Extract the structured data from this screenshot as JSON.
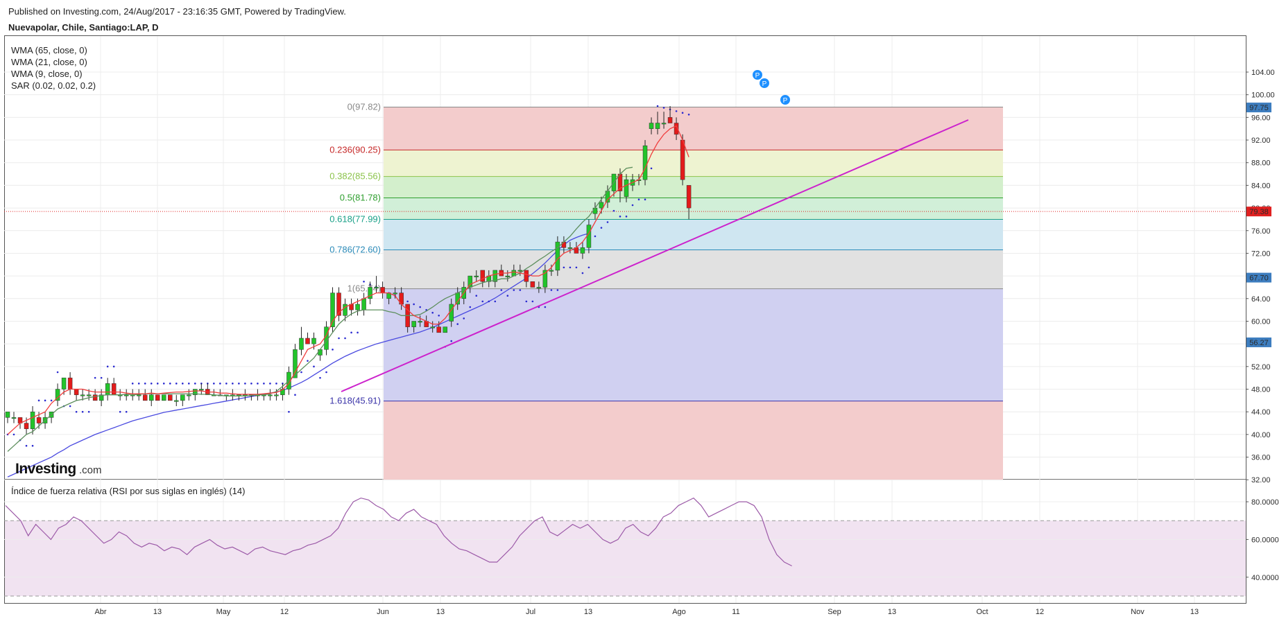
{
  "header": {
    "published": "Published on Investing.com, 24/Aug/2017 - 23:16:35 GMT, Powered by TradingView.",
    "symbol": "Nuevapolar, Chile, Santiago:LAP, D"
  },
  "logo": {
    "text": "Investing",
    "suffix": ".com"
  },
  "indicators": [
    "WMA (65, close, 0)",
    "WMA (21, close, 0)",
    "WMA (9, close, 0)",
    "SAR (0.02, 0.02, 0.2)"
  ],
  "price_axis": {
    "ticks": [
      "104.00",
      "100.00",
      "96.00",
      "92.00",
      "88.00",
      "84.00",
      "80.00",
      "76.00",
      "72.00",
      "68.00",
      "64.00",
      "60.00",
      "56.00",
      "52.00",
      "48.00",
      "44.00",
      "40.00",
      "36.00",
      "32.00"
    ]
  },
  "price_labels": [
    {
      "text": "97.75",
      "value": 97.75,
      "color": "#3d7dbf"
    },
    {
      "text": "79.38",
      "value": 79.38,
      "color": "#e02020"
    },
    {
      "text": "67.70",
      "value": 67.7,
      "color": "#3d7dbf"
    },
    {
      "text": "56.27",
      "value": 56.27,
      "color": "#3d7dbf"
    }
  ],
  "current_price": 79.38,
  "time_axis": {
    "ticks": [
      "Abr",
      "13",
      "May",
      "12",
      "Jun",
      "13",
      "Jul",
      "13",
      "Ago",
      "11",
      "Sep",
      "13",
      "Oct",
      "12",
      "Nov",
      "13"
    ]
  },
  "fibonacci": [
    {
      "text": "0(97.82)",
      "value": 97.82,
      "color": "#888888"
    },
    {
      "text": "0.236(90.25)",
      "value": 90.25,
      "color": "#c62828"
    },
    {
      "text": "0.382(85.56)",
      "value": 85.56,
      "color": "#8bc34a"
    },
    {
      "text": "0.5(81.78)",
      "value": 81.78,
      "color": "#2e9e2e"
    },
    {
      "text": "0.618(77.99)",
      "value": 77.99,
      "color": "#1aa088"
    },
    {
      "text": "0.786(72.60)",
      "value": 72.6,
      "color": "#2a8ab8"
    },
    {
      "text": "1(65.74)",
      "value": 65.74,
      "color": "#888888"
    },
    {
      "text": "1.618(45.91)",
      "value": 45.91,
      "color": "#3a33a8"
    }
  ],
  "rsi": {
    "title": "Índice de fuerza relativa (RSI por sus siglas en inglés) (14)",
    "ticks": [
      "80.0000",
      "60.0000",
      "40.0000"
    ],
    "upper": 70,
    "lower": 30
  },
  "markers": [
    "P",
    "P",
    "P"
  ],
  "colors": {
    "up": "#22c42a",
    "down": "#e31b1b",
    "wma9": "#f03c3c",
    "wma21": "#5d8f5d",
    "wma65": "#4a4ae0",
    "sar": "#2a2ad0",
    "trendline": "#cc22cc",
    "rsi": "#9c5aa8",
    "marker": "#1e90ff"
  },
  "chart_data": {
    "type": "candlestick",
    "title": "Nuevapolar, Chile, Santiago:LAP, D",
    "x_ticks": [
      "Abr",
      "13",
      "May",
      "12",
      "Jun",
      "13",
      "Jul",
      "13",
      "Ago",
      "11",
      "Sep",
      "13",
      "Oct",
      "12",
      "Nov",
      "13"
    ],
    "ylim": [
      29,
      106
    ],
    "candles": [
      {
        "o": 43,
        "h": 44,
        "l": 42,
        "c": 44
      },
      {
        "o": 43,
        "h": 44,
        "l": 42,
        "c": 43
      },
      {
        "o": 43,
        "h": 43,
        "l": 41,
        "c": 42
      },
      {
        "o": 42,
        "h": 43,
        "l": 40,
        "c": 41
      },
      {
        "o": 41,
        "h": 45,
        "l": 40,
        "c": 44
      },
      {
        "o": 43,
        "h": 44,
        "l": 41,
        "c": 42
      },
      {
        "o": 42,
        "h": 44,
        "l": 41,
        "c": 43
      },
      {
        "o": 43,
        "h": 44,
        "l": 42,
        "c": 44
      },
      {
        "o": 46,
        "h": 49,
        "l": 45,
        "c": 48
      },
      {
        "o": 48,
        "h": 50,
        "l": 47,
        "c": 50
      },
      {
        "o": 50,
        "h": 51,
        "l": 47,
        "c": 48
      },
      {
        "o": 48,
        "h": 48,
        "l": 46,
        "c": 47
      },
      {
        "o": 47,
        "h": 48,
        "l": 46,
        "c": 47
      },
      {
        "o": 47,
        "h": 48,
        "l": 46,
        "c": 47
      },
      {
        "o": 47,
        "h": 48,
        "l": 46,
        "c": 46
      },
      {
        "o": 46,
        "h": 48,
        "l": 45,
        "c": 47
      },
      {
        "o": 47,
        "h": 50,
        "l": 46,
        "c": 49
      },
      {
        "o": 49,
        "h": 50,
        "l": 47,
        "c": 47
      },
      {
        "o": 47,
        "h": 48,
        "l": 46,
        "c": 47
      },
      {
        "o": 47,
        "h": 48,
        "l": 46,
        "c": 47
      },
      {
        "o": 47,
        "h": 48,
        "l": 46,
        "c": 47
      },
      {
        "o": 47,
        "h": 48,
        "l": 46,
        "c": 47
      },
      {
        "o": 47,
        "h": 48,
        "l": 46,
        "c": 46
      },
      {
        "o": 46,
        "h": 48,
        "l": 45,
        "c": 47
      },
      {
        "o": 47,
        "h": 47,
        "l": 46,
        "c": 46
      },
      {
        "o": 46,
        "h": 47,
        "l": 46,
        "c": 47
      },
      {
        "o": 47,
        "h": 47,
        "l": 46,
        "c": 46
      },
      {
        "o": 46,
        "h": 47,
        "l": 45,
        "c": 46
      },
      {
        "o": 46,
        "h": 47,
        "l": 45,
        "c": 47
      },
      {
        "o": 47,
        "h": 48,
        "l": 46,
        "c": 47
      },
      {
        "o": 47,
        "h": 48,
        "l": 46,
        "c": 48
      },
      {
        "o": 48,
        "h": 49,
        "l": 47,
        "c": 48
      },
      {
        "o": 48,
        "h": 49,
        "l": 47,
        "c": 47
      },
      {
        "o": 47,
        "h": 48,
        "l": 47,
        "c": 47
      },
      {
        "o": 47,
        "h": 48,
        "l": 47,
        "c": 47
      },
      {
        "o": 47,
        "h": 47,
        "l": 46,
        "c": 47
      },
      {
        "o": 47,
        "h": 48,
        "l": 46,
        "c": 47
      },
      {
        "o": 47,
        "h": 47,
        "l": 46,
        "c": 47
      },
      {
        "o": 47,
        "h": 48,
        "l": 46,
        "c": 47
      },
      {
        "o": 47,
        "h": 47,
        "l": 46,
        "c": 47
      },
      {
        "o": 47,
        "h": 48,
        "l": 46,
        "c": 47
      },
      {
        "o": 47,
        "h": 47,
        "l": 46,
        "c": 47
      },
      {
        "o": 47,
        "h": 48,
        "l": 46,
        "c": 47
      },
      {
        "o": 47,
        "h": 48,
        "l": 46,
        "c": 47
      },
      {
        "o": 47,
        "h": 49,
        "l": 46,
        "c": 48
      },
      {
        "o": 48,
        "h": 52,
        "l": 47,
        "c": 51
      },
      {
        "o": 50,
        "h": 56,
        "l": 50,
        "c": 55
      },
      {
        "o": 55,
        "h": 59,
        "l": 54,
        "c": 57
      },
      {
        "o": 57,
        "h": 58,
        "l": 56,
        "c": 56
      },
      {
        "o": 56,
        "h": 58,
        "l": 55,
        "c": 57
      },
      {
        "o": 54,
        "h": 55,
        "l": 53,
        "c": 55
      },
      {
        "o": 55,
        "h": 60,
        "l": 54,
        "c": 59
      },
      {
        "o": 59,
        "h": 66,
        "l": 58,
        "c": 65
      },
      {
        "o": 65,
        "h": 66,
        "l": 60,
        "c": 61
      },
      {
        "o": 61,
        "h": 64,
        "l": 60,
        "c": 63
      },
      {
        "o": 63,
        "h": 64,
        "l": 61,
        "c": 62
      },
      {
        "o": 62,
        "h": 64,
        "l": 61,
        "c": 63
      },
      {
        "o": 62,
        "h": 65,
        "l": 61,
        "c": 64
      },
      {
        "o": 64,
        "h": 67,
        "l": 63,
        "c": 66
      },
      {
        "o": 66,
        "h": 68,
        "l": 65,
        "c": 66
      },
      {
        "o": 66,
        "h": 67,
        "l": 64,
        "c": 65
      },
      {
        "o": 64,
        "h": 65,
        "l": 63,
        "c": 65
      },
      {
        "o": 65,
        "h": 66,
        "l": 64,
        "c": 65
      },
      {
        "o": 65,
        "h": 66,
        "l": 62,
        "c": 63
      },
      {
        "o": 63,
        "h": 63,
        "l": 58,
        "c": 59
      },
      {
        "o": 59,
        "h": 60,
        "l": 58,
        "c": 60
      },
      {
        "o": 60,
        "h": 61,
        "l": 59,
        "c": 60
      },
      {
        "o": 60,
        "h": 61,
        "l": 59,
        "c": 59
      },
      {
        "o": 59,
        "h": 60,
        "l": 58,
        "c": 59
      },
      {
        "o": 59,
        "h": 60,
        "l": 58,
        "c": 58
      },
      {
        "o": 58,
        "h": 59,
        "l": 58,
        "c": 59
      },
      {
        "o": 60,
        "h": 64,
        "l": 59,
        "c": 63
      },
      {
        "o": 63,
        "h": 66,
        "l": 62,
        "c": 65
      },
      {
        "o": 64,
        "h": 67,
        "l": 63,
        "c": 66
      },
      {
        "o": 66,
        "h": 68,
        "l": 65,
        "c": 68
      },
      {
        "o": 68,
        "h": 69,
        "l": 67,
        "c": 68
      },
      {
        "o": 69,
        "h": 69,
        "l": 66,
        "c": 67
      },
      {
        "o": 67,
        "h": 69,
        "l": 66,
        "c": 68
      },
      {
        "o": 67,
        "h": 69,
        "l": 66,
        "c": 69
      },
      {
        "o": 69,
        "h": 70,
        "l": 68,
        "c": 68
      },
      {
        "o": 68,
        "h": 69,
        "l": 67,
        "c": 68
      },
      {
        "o": 68,
        "h": 70,
        "l": 68,
        "c": 69
      },
      {
        "o": 69,
        "h": 70,
        "l": 68,
        "c": 69
      },
      {
        "o": 69,
        "h": 69,
        "l": 66,
        "c": 67
      },
      {
        "o": 67,
        "h": 67,
        "l": 66,
        "c": 66
      },
      {
        "o": 66,
        "h": 67,
        "l": 65,
        "c": 66
      },
      {
        "o": 66,
        "h": 70,
        "l": 65,
        "c": 69
      },
      {
        "o": 69,
        "h": 70,
        "l": 68,
        "c": 69
      },
      {
        "o": 69,
        "h": 75,
        "l": 68,
        "c": 74
      },
      {
        "o": 74,
        "h": 75,
        "l": 72,
        "c": 73
      },
      {
        "o": 73,
        "h": 74,
        "l": 72,
        "c": 73
      },
      {
        "o": 73,
        "h": 74,
        "l": 72,
        "c": 72
      },
      {
        "o": 72,
        "h": 74,
        "l": 71,
        "c": 73
      },
      {
        "o": 73,
        "h": 78,
        "l": 72,
        "c": 77
      },
      {
        "o": 79,
        "h": 81,
        "l": 78,
        "c": 80
      },
      {
        "o": 80,
        "h": 82,
        "l": 79,
        "c": 81
      },
      {
        "o": 81,
        "h": 84,
        "l": 80,
        "c": 83
      },
      {
        "o": 83,
        "h": 86,
        "l": 82,
        "c": 86
      },
      {
        "o": 86,
        "h": 87,
        "l": 81,
        "c": 83
      },
      {
        "o": 82,
        "h": 86,
        "l": 81,
        "c": 85
      },
      {
        "o": 84,
        "h": 86,
        "l": 83,
        "c": 85
      },
      {
        "o": 85,
        "h": 86,
        "l": 84,
        "c": 85
      },
      {
        "o": 85,
        "h": 92,
        "l": 84,
        "c": 91
      },
      {
        "o": 94,
        "h": 96,
        "l": 93,
        "c": 95
      },
      {
        "o": 94,
        "h": 97,
        "l": 93,
        "c": 95
      },
      {
        "o": 95,
        "h": 97,
        "l": 94,
        "c": 95
      },
      {
        "o": 96,
        "h": 98,
        "l": 95,
        "c": 95
      },
      {
        "o": 95,
        "h": 96,
        "l": 92,
        "c": 93
      },
      {
        "o": 92,
        "h": 93,
        "l": 84,
        "c": 85
      },
      {
        "o": 84,
        "h": 84,
        "l": 78,
        "c": 80
      }
    ],
    "wma9": [
      40,
      41,
      42,
      42.5,
      43,
      43.5,
      44,
      45.5,
      46.5,
      47.5,
      48,
      48,
      48,
      47.7,
      47.5,
      47.5,
      47.5,
      47.5,
      47.5,
      47.3,
      47.2,
      47.2,
      47.2,
      47.3,
      47.2,
      47.3,
      47.4,
      47.5,
      47.5,
      47.6,
      47.7,
      47.7,
      47.5,
      47.5,
      47.3,
      47.3,
      47.2,
      47.1,
      47.1,
      47.1,
      47.1,
      47.2,
      47.3,
      47.4,
      47.9,
      49,
      51,
      53,
      55,
      55.5,
      56,
      57.5,
      60,
      61.5,
      62.5,
      63,
      63.5,
      64,
      64.5,
      65,
      65,
      65,
      64.5,
      63,
      62,
      61,
      60.5,
      60,
      59.5,
      59.5,
      60.5,
      62,
      63.5,
      65,
      66.5,
      67,
      67.5,
      68,
      68.3,
      68.5,
      68.5,
      68.7,
      68.5,
      68.3,
      68,
      68,
      68.5,
      69.5,
      71,
      72,
      72.5,
      73,
      74,
      75.5,
      77.5,
      79.5,
      81.5,
      82.5,
      83.5,
      84,
      84.5,
      85,
      87,
      89.5,
      91.5,
      93,
      94,
      94.5,
      92,
      89
    ],
    "wma21": [
      37,
      38,
      39,
      40,
      40.5,
      41.5,
      42.5,
      43.5,
      44.5,
      45,
      45.5,
      46,
      46.2,
      46.5,
      46.7,
      46.9,
      47,
      47,
      47,
      47.1,
      47,
      47.1,
      47.2,
      47.2,
      47.2,
      47.2,
      47.2,
      47.2,
      47.2,
      47.2,
      47.2,
      47.1,
      47.1,
      47,
      46.9,
      46.8,
      46.8,
      46.8,
      46.8,
      46.9,
      47,
      47,
      47.2,
      47.6,
      48.5,
      49.5,
      50.5,
      51.5,
      52.5,
      53.5,
      55,
      56.5,
      58,
      59.5,
      60.5,
      61.3,
      61.8,
      62,
      62,
      62,
      62,
      61.7,
      61.5,
      61,
      61,
      61,
      61.2,
      61.8,
      62.5,
      63.3,
      64,
      64.5,
      65,
      65.5,
      66,
      66.4,
      66.8,
      67.1,
      67.2,
      67.5,
      67.5,
      68,
      68.5,
      69.3,
      70,
      70.8,
      71.5,
      72.3,
      73,
      74,
      75,
      76.3,
      77.5,
      78.5,
      80,
      81.5,
      83,
      84.5,
      86,
      87,
      87.2
    ],
    "wma65": [
      32.5,
      33,
      33.5,
      34,
      34.5,
      35,
      35.5,
      36,
      36.7,
      37.3,
      38,
      38.5,
      39,
      39.5,
      40,
      40.4,
      40.8,
      41.2,
      41.6,
      42,
      42.4,
      42.7,
      43,
      43.3,
      43.6,
      43.9,
      44.1,
      44.3,
      44.5,
      44.7,
      44.9,
      45.1,
      45.3,
      45.5,
      45.7,
      45.9,
      46.1,
      46.3,
      46.5,
      46.7,
      46.9,
      47.1,
      47.3,
      47.5,
      47.8,
      48.2,
      48.7,
      49.2,
      49.8,
      50.5,
      51.2,
      51.9,
      52.6,
      53.2,
      53.8,
      54.3,
      54.8,
      55.2,
      55.6,
      56,
      56.3,
      56.6,
      56.9,
      57.2,
      57.5,
      57.8,
      58.1,
      58.5,
      58.9,
      59.4,
      59.9,
      60.4,
      60.9,
      61.4,
      61.9,
      62.4,
      62.9,
      63.5,
      64.1,
      64.8,
      65.5,
      66.2,
      66.9,
      67.6,
      68.4,
      69.3,
      70.3,
      71.4,
      72.5,
      73.5,
      74.3,
      74.8,
      75.2,
      75.5
    ]
  }
}
